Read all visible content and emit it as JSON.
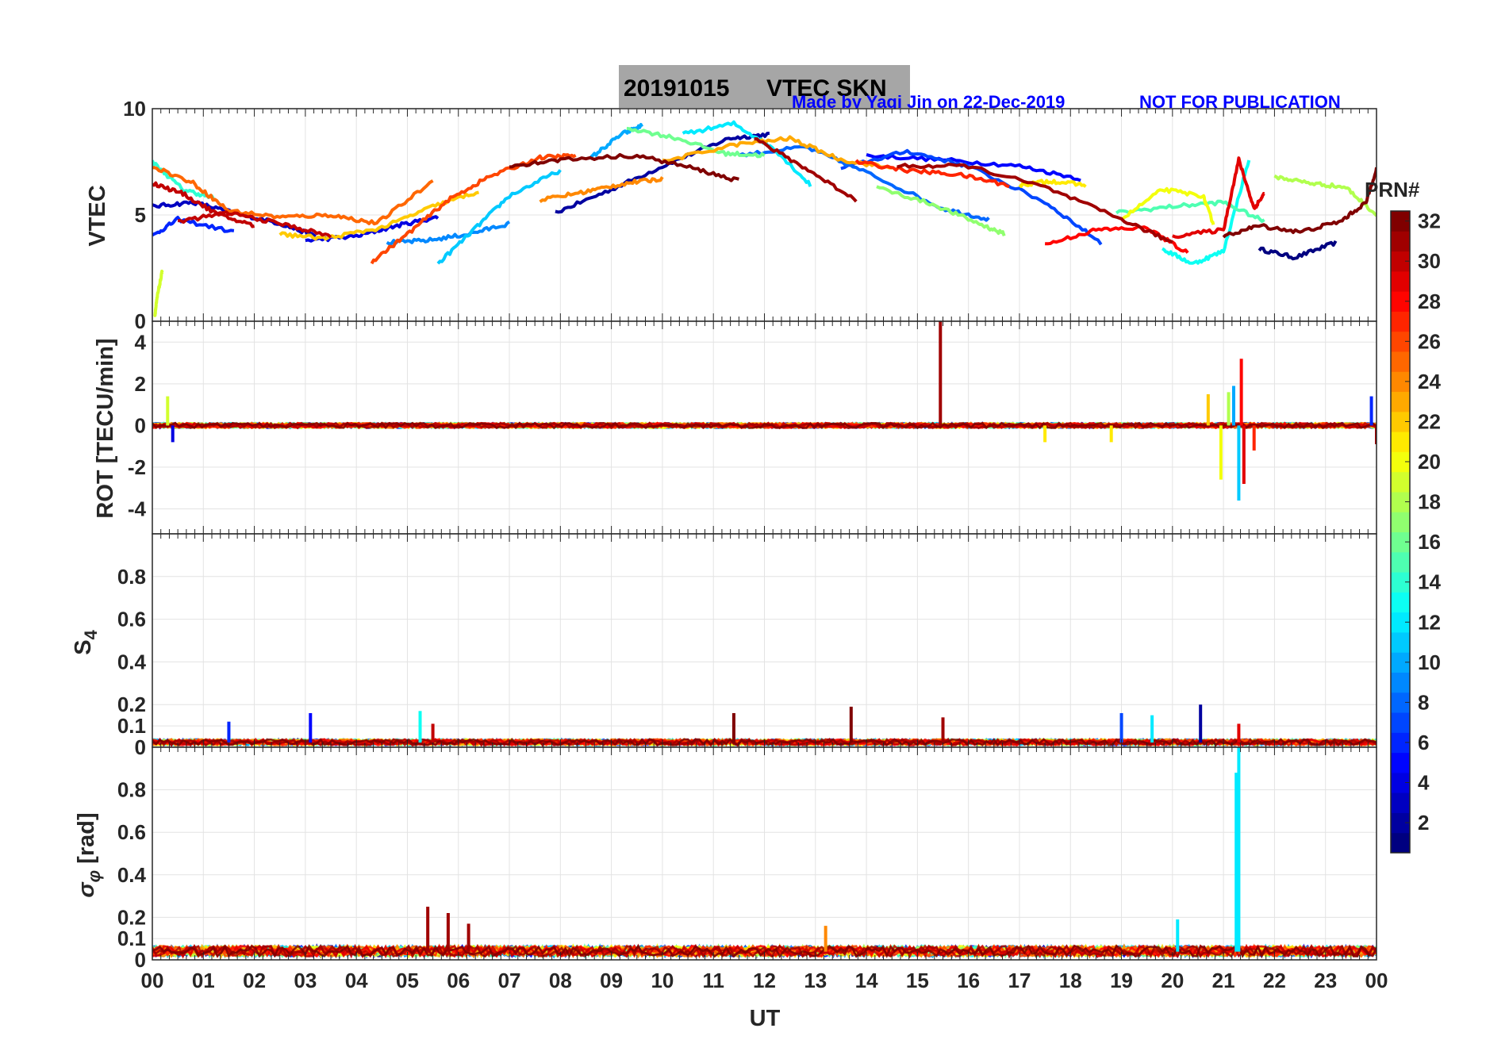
{
  "figure": {
    "date": "20191015",
    "title_main": "VTEC  SKN",
    "credit": "Made by Yaqi Jin on 22-Dec-2019",
    "notice": "NOT FOR PUBLICATION"
  },
  "colorbar": {
    "label": "PRN#",
    "range": [
      1,
      32
    ],
    "ticks": [
      "2",
      "4",
      "6",
      "8",
      "10",
      "12",
      "14",
      "16",
      "18",
      "20",
      "22",
      "24",
      "26",
      "28",
      "30",
      "32"
    ],
    "colormap": "jet"
  },
  "xaxis": {
    "label": "UT",
    "range": [
      0,
      24
    ],
    "ticks": [
      "00",
      "01",
      "02",
      "03",
      "04",
      "05",
      "06",
      "07",
      "08",
      "09",
      "10",
      "11",
      "12",
      "13",
      "14",
      "15",
      "16",
      "17",
      "18",
      "19",
      "20",
      "21",
      "22",
      "23",
      "00"
    ]
  },
  "chart_data": [
    {
      "type": "line",
      "ylabel": "VTEC",
      "ylim": [
        0,
        10
      ],
      "yticks": [
        "0",
        "5",
        "10"
      ],
      "grid": true,
      "series": [
        {
          "prn": 1,
          "x": [
            21.7,
            22.4,
            23.2
          ],
          "y": [
            3.4,
            3.0,
            3.7
          ]
        },
        {
          "prn": 2,
          "x": [
            7.9,
            9.0,
            10.2,
            11.3,
            12.1
          ],
          "y": [
            5.1,
            6.2,
            7.5,
            8.6,
            8.8
          ]
        },
        {
          "prn": 3,
          "x": [
            0.0,
            0.8,
            1.6,
            2.5,
            3.2
          ],
          "y": [
            5.4,
            5.6,
            5.1,
            4.6,
            4.0
          ]
        },
        {
          "prn": 4,
          "x": [
            3.0,
            4.0,
            4.8,
            5.6
          ],
          "y": [
            3.8,
            4.0,
            4.5,
            4.9
          ]
        },
        {
          "prn": 5,
          "x": [
            14.0,
            15.5,
            17.0,
            18.2
          ],
          "y": [
            7.8,
            7.6,
            7.3,
            6.7
          ]
        },
        {
          "prn": 6,
          "x": [
            0.0,
            0.5,
            1.6
          ],
          "y": [
            4.0,
            4.8,
            4.2
          ]
        },
        {
          "prn": 7,
          "x": [
            13.5,
            14.8,
            16.0,
            17.5,
            18.6
          ],
          "y": [
            7.2,
            8.0,
            7.3,
            5.6,
            3.7
          ]
        },
        {
          "prn": 8,
          "x": [
            11.5,
            12.8,
            14.0,
            15.5,
            16.4
          ],
          "y": [
            7.8,
            8.2,
            7.0,
            5.3,
            4.8
          ]
        },
        {
          "prn": 9,
          "x": [
            4.6,
            5.4,
            6.2,
            7.0
          ],
          "y": [
            3.7,
            3.8,
            4.1,
            4.6
          ]
        },
        {
          "prn": 10,
          "x": [
            8.6,
            9.2,
            9.6
          ],
          "y": [
            7.7,
            8.8,
            9.2
          ]
        },
        {
          "prn": 11,
          "x": [
            5.6,
            6.3,
            7.0,
            8.0
          ],
          "y": [
            2.7,
            4.3,
            5.9,
            7.1
          ]
        },
        {
          "prn": 12,
          "x": [
            10.4,
            11.4,
            12.2,
            12.9
          ],
          "y": [
            8.8,
            9.3,
            8.1,
            6.4
          ]
        },
        {
          "prn": 13,
          "x": [
            19.8,
            20.4,
            21.0,
            21.5
          ],
          "y": [
            3.4,
            2.7,
            3.3,
            7.6
          ]
        },
        {
          "prn": 14,
          "x": [
            0.0,
            0.6,
            1.2
          ],
          "y": [
            7.5,
            6.2,
            5.8
          ]
        },
        {
          "prn": 15,
          "x": [
            18.9,
            20.0,
            21.0,
            21.8
          ],
          "y": [
            5.1,
            5.4,
            5.6,
            4.7
          ]
        },
        {
          "prn": 16,
          "x": [
            9.3,
            10.3,
            11.2,
            12.0
          ],
          "y": [
            9.1,
            8.6,
            7.9,
            7.8
          ]
        },
        {
          "prn": 17,
          "x": [
            14.2,
            15.3,
            16.2,
            16.7
          ],
          "y": [
            6.3,
            5.5,
            4.6,
            4.1
          ]
        },
        {
          "prn": 18,
          "x": [
            22.0,
            22.7,
            23.4,
            24.0
          ],
          "y": [
            6.8,
            6.5,
            6.3,
            5.0
          ]
        },
        {
          "prn": 19,
          "x": [
            0.05,
            0.1,
            0.2
          ],
          "y": [
            0.3,
            1.2,
            2.4
          ]
        },
        {
          "prn": 20,
          "x": [
            19.0,
            19.8,
            20.6,
            20.8
          ],
          "y": [
            4.8,
            6.2,
            5.9,
            4.6
          ]
        },
        {
          "prn": 21,
          "x": [
            17.0,
            17.6,
            18.3
          ],
          "y": [
            6.4,
            6.6,
            6.4
          ]
        },
        {
          "prn": 22,
          "x": [
            2.5,
            3.4,
            4.5,
            5.5,
            6.4
          ],
          "y": [
            4.1,
            3.9,
            4.4,
            5.4,
            6.1
          ]
        },
        {
          "prn": 23,
          "x": [
            10.0,
            11.4,
            12.5,
            13.5,
            14.5
          ],
          "y": [
            7.5,
            8.3,
            8.6,
            7.6,
            7.2
          ]
        },
        {
          "prn": 24,
          "x": [
            7.6,
            8.5,
            9.3,
            10.0
          ],
          "y": [
            5.7,
            6.1,
            6.5,
            6.7
          ]
        },
        {
          "prn": 25,
          "x": [
            0.0,
            0.8,
            1.5,
            2.5,
            3.5,
            4.4,
            5.5
          ],
          "y": [
            7.3,
            6.5,
            5.2,
            4.9,
            5.0,
            4.6,
            6.6
          ]
        },
        {
          "prn": 26,
          "x": [
            4.3,
            5.0,
            5.8,
            6.6,
            7.6,
            8.3
          ],
          "y": [
            2.8,
            4.1,
            5.7,
            6.8,
            7.7,
            7.8
          ]
        },
        {
          "prn": 27,
          "x": [
            13.8,
            14.8,
            15.8,
            16.8
          ],
          "y": [
            7.5,
            7.1,
            6.9,
            6.4
          ]
        },
        {
          "prn": 28,
          "x": [
            17.5,
            18.5,
            19.5,
            20.3
          ],
          "y": [
            3.6,
            4.3,
            4.4,
            3.2
          ]
        },
        {
          "prn": 29,
          "x": [
            20.0,
            21.0,
            21.3,
            21.6,
            21.8
          ],
          "y": [
            4.0,
            4.3,
            7.6,
            5.3,
            6.0
          ]
        },
        {
          "prn": 30,
          "x": [
            0.5,
            1.5,
            2.5,
            3.5
          ],
          "y": [
            4.7,
            5.1,
            4.6,
            4.0
          ]
        },
        {
          "prn": 31,
          "x": [
            14.6,
            16.0,
            17.5,
            19.0,
            20.0
          ],
          "y": [
            7.3,
            7.3,
            6.3,
            4.8,
            3.7
          ]
        },
        {
          "prn": 32,
          "x": [
            7.0,
            8.0,
            9.5,
            10.6,
            11.5
          ],
          "y": [
            7.3,
            7.6,
            7.8,
            7.2,
            6.6
          ]
        },
        {
          "prn": 32,
          "x": [
            21.0,
            21.7,
            22.5,
            23.3,
            23.8,
            24.0
          ],
          "y": [
            4.0,
            4.5,
            4.2,
            4.7,
            5.6,
            7.2
          ]
        },
        {
          "prn": 31,
          "x": [
            11.8,
            12.8,
            13.8
          ],
          "y": [
            8.6,
            7.2,
            5.7
          ]
        },
        {
          "prn": 30,
          "x": [
            0.0,
            0.6,
            1.3,
            2.0
          ],
          "y": [
            6.5,
            6.0,
            5.0,
            4.5
          ]
        }
      ]
    },
    {
      "type": "line",
      "ylabel": "ROT [TECU/min]",
      "ylim": [
        -5.2,
        5
      ],
      "yticks": [
        "-4",
        "-2",
        "0",
        "2",
        "4"
      ],
      "grid": true,
      "noise_level": 0.12,
      "spikes": [
        {
          "x": 15.45,
          "y": 5.0,
          "prn": 31
        },
        {
          "x": 21.35,
          "y": 3.2,
          "prn": 28
        },
        {
          "x": 21.3,
          "y": -3.6,
          "prn": 11
        },
        {
          "x": 20.95,
          "y": -2.6,
          "prn": 20
        },
        {
          "x": 21.4,
          "y": -2.8,
          "prn": 29
        },
        {
          "x": 21.1,
          "y": 1.6,
          "prn": 18
        },
        {
          "x": 21.2,
          "y": 1.9,
          "prn": 10
        },
        {
          "x": 20.7,
          "y": 1.5,
          "prn": 22
        },
        {
          "x": 0.3,
          "y": 1.4,
          "prn": 19
        },
        {
          "x": 23.9,
          "y": 1.4,
          "prn": 6
        },
        {
          "x": 24.0,
          "y": -0.9,
          "prn": 31
        },
        {
          "x": 0.4,
          "y": -0.8,
          "prn": 4
        },
        {
          "x": 21.6,
          "y": -1.2,
          "prn": 27
        },
        {
          "x": 17.5,
          "y": -0.8,
          "prn": 21
        },
        {
          "x": 18.8,
          "y": -0.8,
          "prn": 21
        }
      ]
    },
    {
      "type": "line",
      "ylabel": "S4",
      "ylim": [
        0,
        1
      ],
      "yticks": [
        "0",
        "0.1",
        "0.2",
        "0.4",
        "0.6",
        "0.8"
      ],
      "grid": true,
      "noise_level": 0.04,
      "spikes": [
        {
          "x": 3.1,
          "y": 0.16,
          "prn": 5
        },
        {
          "x": 5.25,
          "y": 0.17,
          "prn": 13
        },
        {
          "x": 11.4,
          "y": 0.16,
          "prn": 32
        },
        {
          "x": 13.7,
          "y": 0.19,
          "prn": 32
        },
        {
          "x": 15.5,
          "y": 0.14,
          "prn": 31
        },
        {
          "x": 19.0,
          "y": 0.16,
          "prn": 7
        },
        {
          "x": 20.55,
          "y": 0.2,
          "prn": 2
        },
        {
          "x": 19.6,
          "y": 0.15,
          "prn": 12
        },
        {
          "x": 1.5,
          "y": 0.12,
          "prn": 6
        },
        {
          "x": 5.5,
          "y": 0.11,
          "prn": 30
        },
        {
          "x": 21.3,
          "y": 0.11,
          "prn": 29
        }
      ]
    },
    {
      "type": "line",
      "ylabel": "σφ [rad]",
      "ylim": [
        0,
        1
      ],
      "yticks": [
        "0",
        "0.1",
        "0.2",
        "0.4",
        "0.6",
        "0.8"
      ],
      "grid": true,
      "noise_level": 0.07,
      "spikes": [
        {
          "x": 21.3,
          "y": 1.0,
          "prn": 12
        },
        {
          "x": 21.25,
          "y": 0.88,
          "prn": 12
        },
        {
          "x": 5.4,
          "y": 0.25,
          "prn": 31
        },
        {
          "x": 5.8,
          "y": 0.22,
          "prn": 31
        },
        {
          "x": 6.2,
          "y": 0.17,
          "prn": 31
        },
        {
          "x": 20.1,
          "y": 0.19,
          "prn": 12
        },
        {
          "x": 13.2,
          "y": 0.16,
          "prn": 24
        }
      ]
    }
  ]
}
